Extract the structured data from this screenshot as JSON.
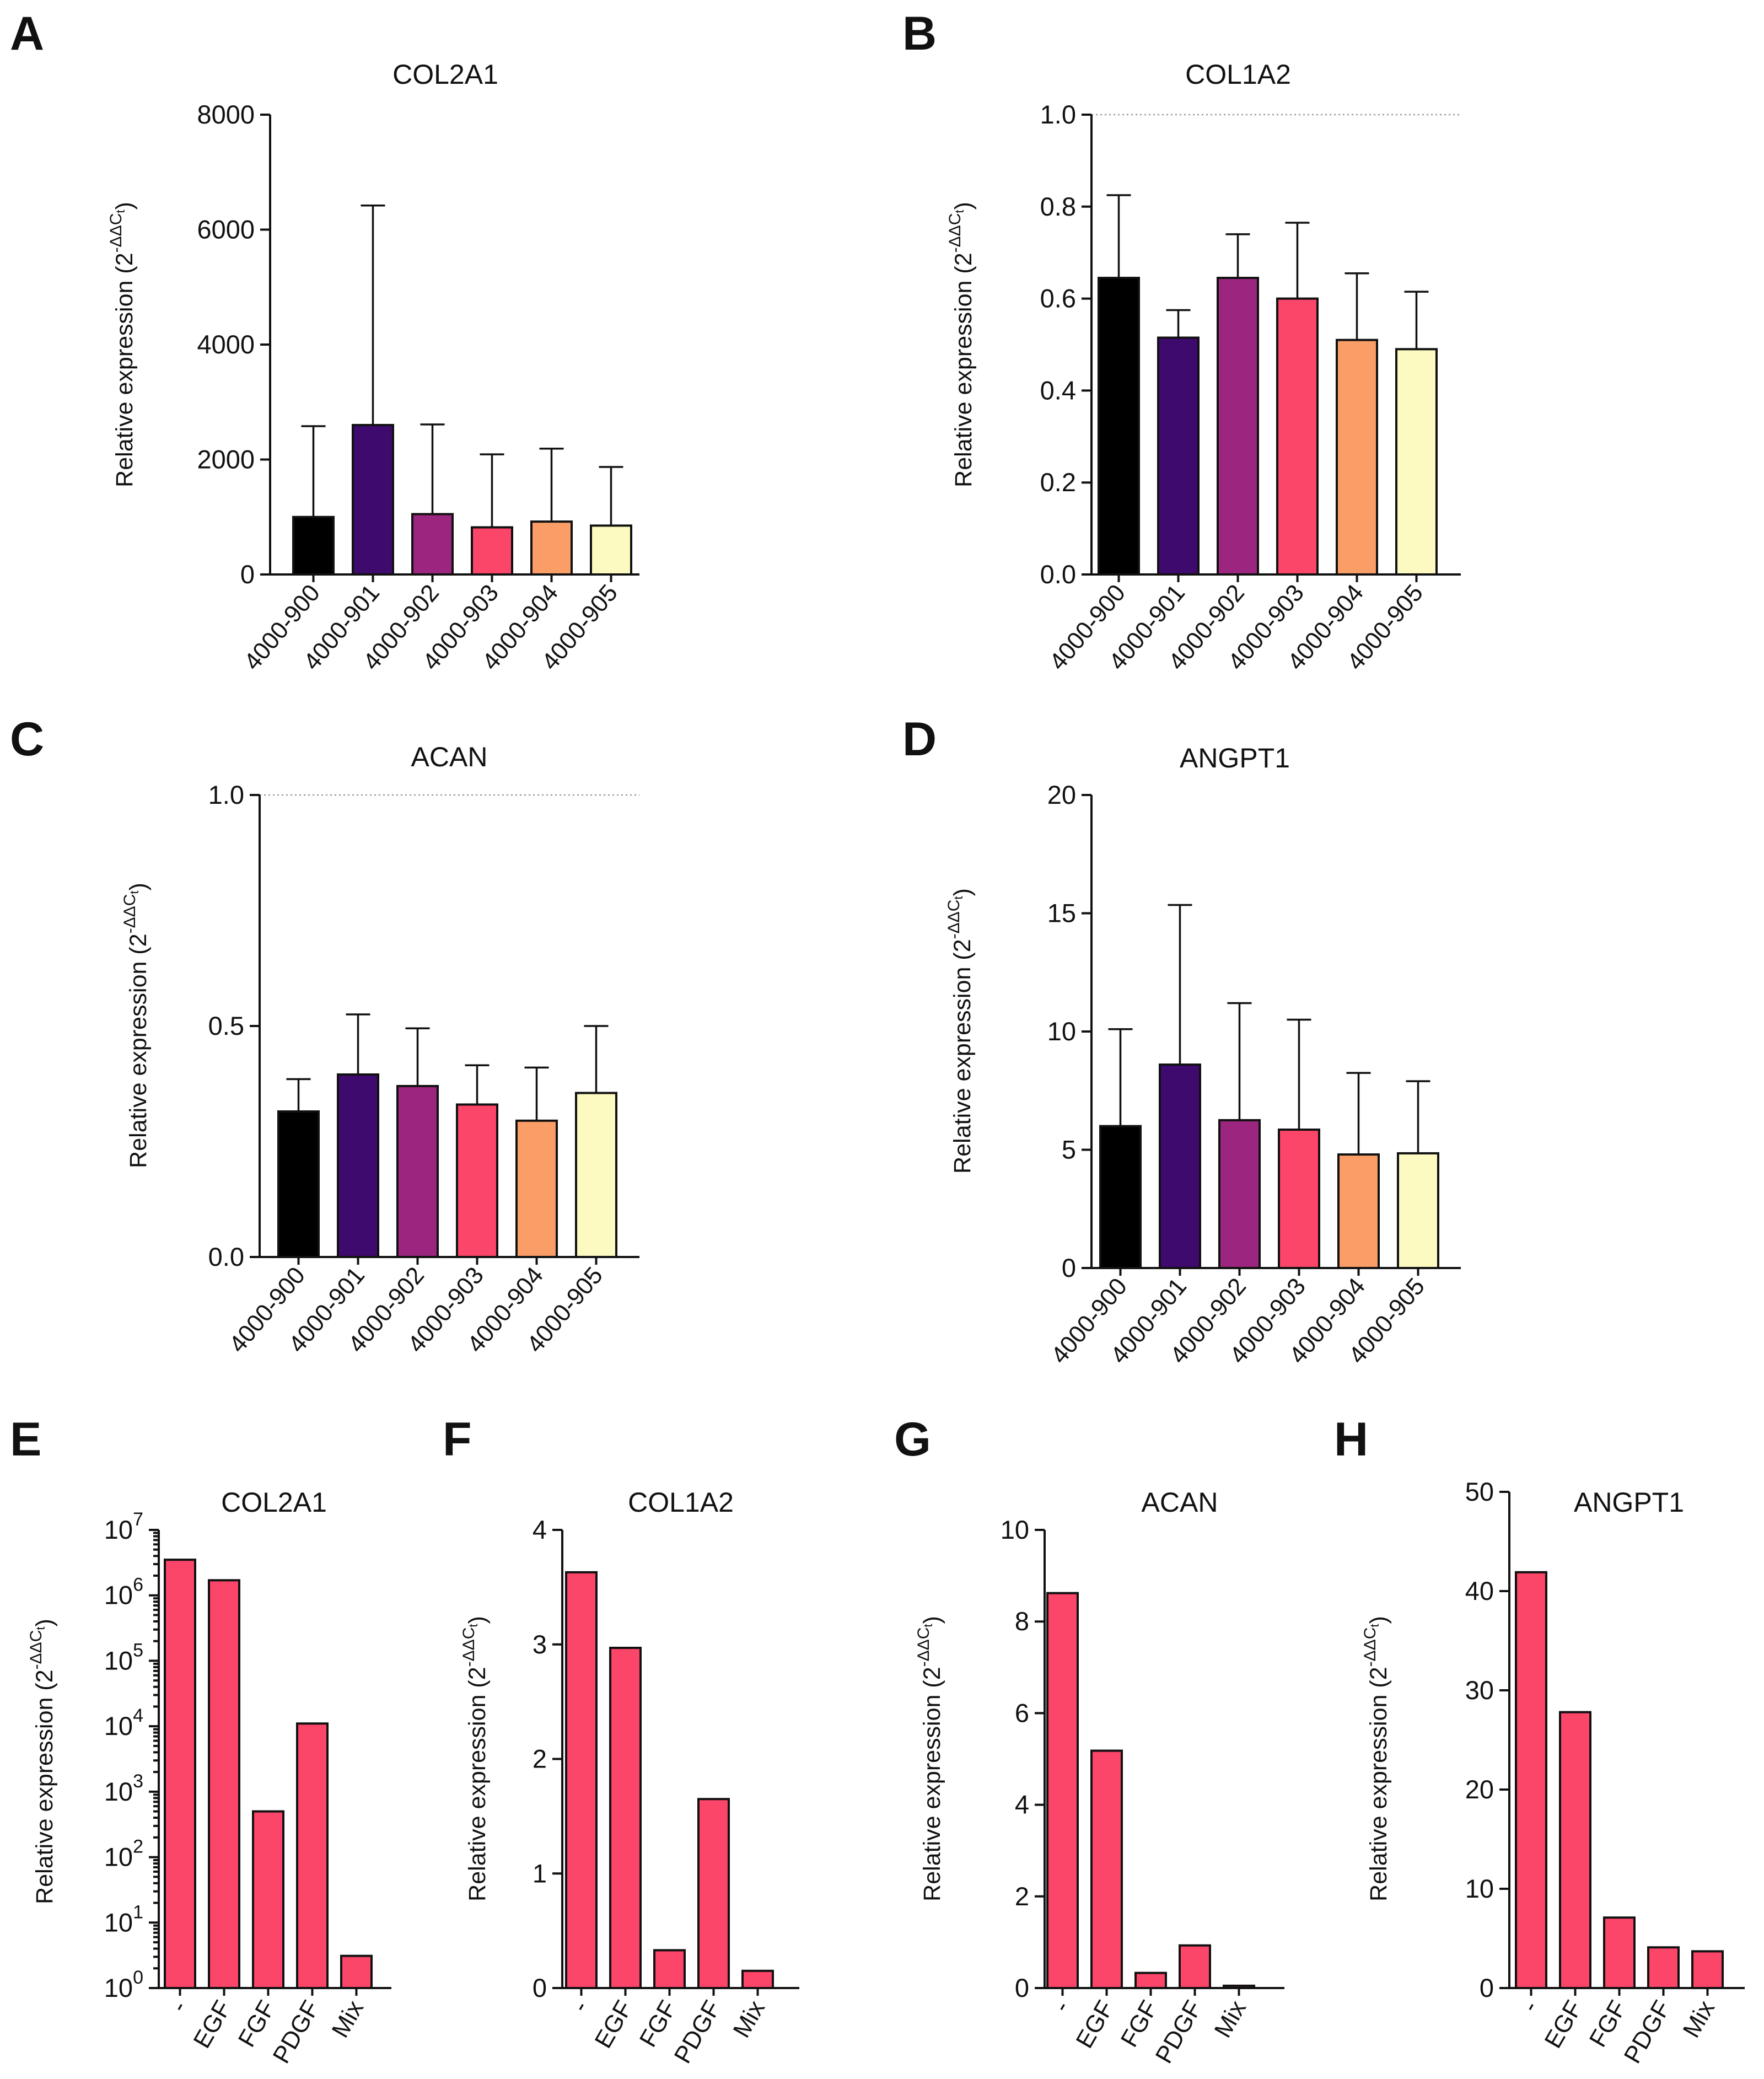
{
  "colors": {
    "4000-900": "#000000",
    "4000-901": "#3e0a6e",
    "4000-902": "#9c2580",
    "4000-903": "#fb4569",
    "4000-904": "#fb9d67",
    "4000-905": "#fcfac0",
    "growth_factor_bars": "#fb4569"
  },
  "chart_data": [
    {
      "panel": "A",
      "type": "bar",
      "title": "COL2A1",
      "ylabel": "Relative expression (2-ΔΔCt)",
      "ylim": [
        0,
        8000
      ],
      "yticks": [
        0,
        2000,
        4000,
        6000,
        8000
      ],
      "yscale": "linear",
      "categories": [
        "4000-900",
        "4000-901",
        "4000-902",
        "4000-903",
        "4000-904",
        "4000-905"
      ],
      "values": [
        1000,
        2600,
        1050,
        820,
        920,
        850
      ],
      "error_upper": [
        2580,
        6420,
        2610,
        2090,
        2190,
        1870
      ],
      "reference_line": null
    },
    {
      "panel": "B",
      "type": "bar",
      "title": "COL1A2",
      "ylabel": "Relative expression (2-ΔΔCt)",
      "ylim": [
        0,
        1.0
      ],
      "yticks": [
        "0.0",
        "0.2",
        "0.4",
        "0.6",
        "0.8",
        "1.0"
      ],
      "yscale": "linear",
      "categories": [
        "4000-900",
        "4000-901",
        "4000-902",
        "4000-903",
        "4000-904",
        "4000-905"
      ],
      "values": [
        0.645,
        0.515,
        0.645,
        0.6,
        0.51,
        0.49
      ],
      "error_upper": [
        0.825,
        0.575,
        0.74,
        0.765,
        0.655,
        0.615
      ],
      "reference_line": 1.0
    },
    {
      "panel": "C",
      "type": "bar",
      "title": "ACAN",
      "ylabel": "Relative expression (2-ΔΔCt)",
      "ylim": [
        0,
        1.0
      ],
      "yticks": [
        "0.0",
        "0.5",
        "1.0"
      ],
      "yscale": "linear",
      "categories": [
        "4000-900",
        "4000-901",
        "4000-902",
        "4000-903",
        "4000-904",
        "4000-905"
      ],
      "values": [
        0.315,
        0.395,
        0.37,
        0.33,
        0.295,
        0.355
      ],
      "error_upper": [
        0.385,
        0.525,
        0.495,
        0.415,
        0.41,
        0.5
      ],
      "reference_line": 1.0
    },
    {
      "panel": "D",
      "type": "bar",
      "title": "ANGPT1",
      "ylabel": "Relative expression (2-ΔΔCt)",
      "ylim": [
        0,
        20
      ],
      "yticks": [
        0,
        5,
        10,
        15,
        20
      ],
      "yscale": "linear",
      "categories": [
        "4000-900",
        "4000-901",
        "4000-902",
        "4000-903",
        "4000-904",
        "4000-905"
      ],
      "values": [
        6.0,
        8.6,
        6.25,
        5.85,
        4.8,
        4.85
      ],
      "error_upper": [
        10.1,
        15.35,
        11.2,
        10.5,
        8.25,
        7.9
      ],
      "reference_line": null
    },
    {
      "panel": "E",
      "type": "bar",
      "title": "COL2A1",
      "ylabel": "Relative expression (2-ΔΔCt)",
      "ylim": [
        1,
        10000000
      ],
      "yscale": "log",
      "yticks": [
        {
          "base": "10",
          "exp": "0"
        },
        {
          "base": "10",
          "exp": "1"
        },
        {
          "base": "10",
          "exp": "2"
        },
        {
          "base": "10",
          "exp": "3"
        },
        {
          "base": "10",
          "exp": "4"
        },
        {
          "base": "10",
          "exp": "5"
        },
        {
          "base": "10",
          "exp": "6"
        },
        {
          "base": "10",
          "exp": "7"
        }
      ],
      "categories": [
        "-",
        "EGF",
        "FGF",
        "PDGF",
        "Mix"
      ],
      "values": [
        3500000,
        1700000,
        500,
        11000,
        3.1
      ]
    },
    {
      "panel": "F",
      "type": "bar",
      "title": "COL1A2",
      "ylabel": "Relative expression (2-ΔΔCt)",
      "ylim": [
        0,
        4
      ],
      "yticks": [
        0,
        1,
        2,
        3,
        4
      ],
      "yscale": "linear",
      "categories": [
        "-",
        "EGF",
        "FGF",
        "PDGF",
        "Mix"
      ],
      "values": [
        3.63,
        2.97,
        0.33,
        1.65,
        0.15
      ]
    },
    {
      "panel": "G",
      "type": "bar",
      "title": "ACAN",
      "ylabel": "Relative expression (2-ΔΔCt)",
      "ylim": [
        0,
        10
      ],
      "yticks": [
        0,
        2,
        4,
        6,
        8,
        10
      ],
      "yscale": "linear",
      "categories": [
        "-",
        "EGF",
        "FGF",
        "PDGF",
        "Mix"
      ],
      "values": [
        8.62,
        5.18,
        0.33,
        0.93,
        0.05
      ]
    },
    {
      "panel": "H",
      "type": "bar",
      "title": "ANGPT1",
      "ylabel": "Relative expression (2-ΔΔCt)",
      "ylim": [
        0,
        50
      ],
      "yticks": [
        0,
        10,
        20,
        30,
        40,
        50
      ],
      "yscale": "linear",
      "categories": [
        "-",
        "EGF",
        "FGF",
        "PDGF",
        "Mix"
      ],
      "values": [
        41.9,
        27.8,
        7.1,
        4.1,
        3.7
      ]
    }
  ]
}
